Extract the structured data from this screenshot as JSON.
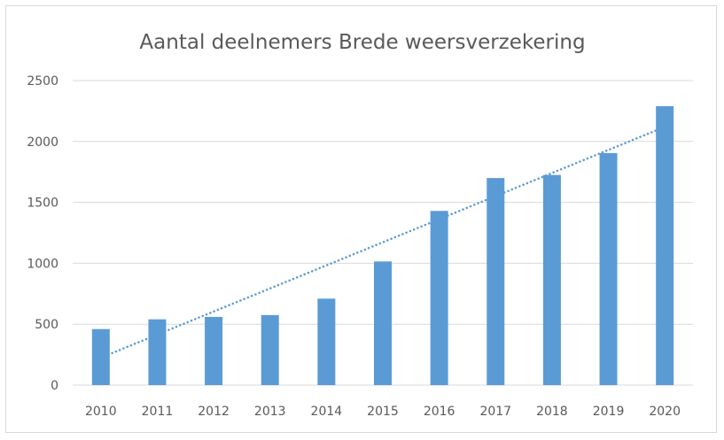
{
  "chart_data": {
    "type": "bar",
    "title": "Aantal deelnemers Brede weersverzekering",
    "xlabel": "",
    "ylabel": "",
    "categories": [
      "2010",
      "2011",
      "2012",
      "2013",
      "2014",
      "2015",
      "2016",
      "2017",
      "2018",
      "2019",
      "2020"
    ],
    "values": [
      460,
      540,
      560,
      575,
      710,
      1015,
      1430,
      1700,
      1725,
      1905,
      2290
    ],
    "ylim": [
      0,
      2500
    ],
    "yticks": [
      0,
      500,
      1000,
      1500,
      2000,
      2500
    ],
    "grid": true,
    "legend": "none",
    "trendline": {
      "type": "linear",
      "style": "dotted",
      "start": 225,
      "end": 2120
    },
    "colors": {
      "bar": "#5b9bd5",
      "trendline": "#5b9bd5",
      "grid": "#d9d9d9",
      "text": "#595959",
      "border": "#d9d9d9"
    }
  }
}
